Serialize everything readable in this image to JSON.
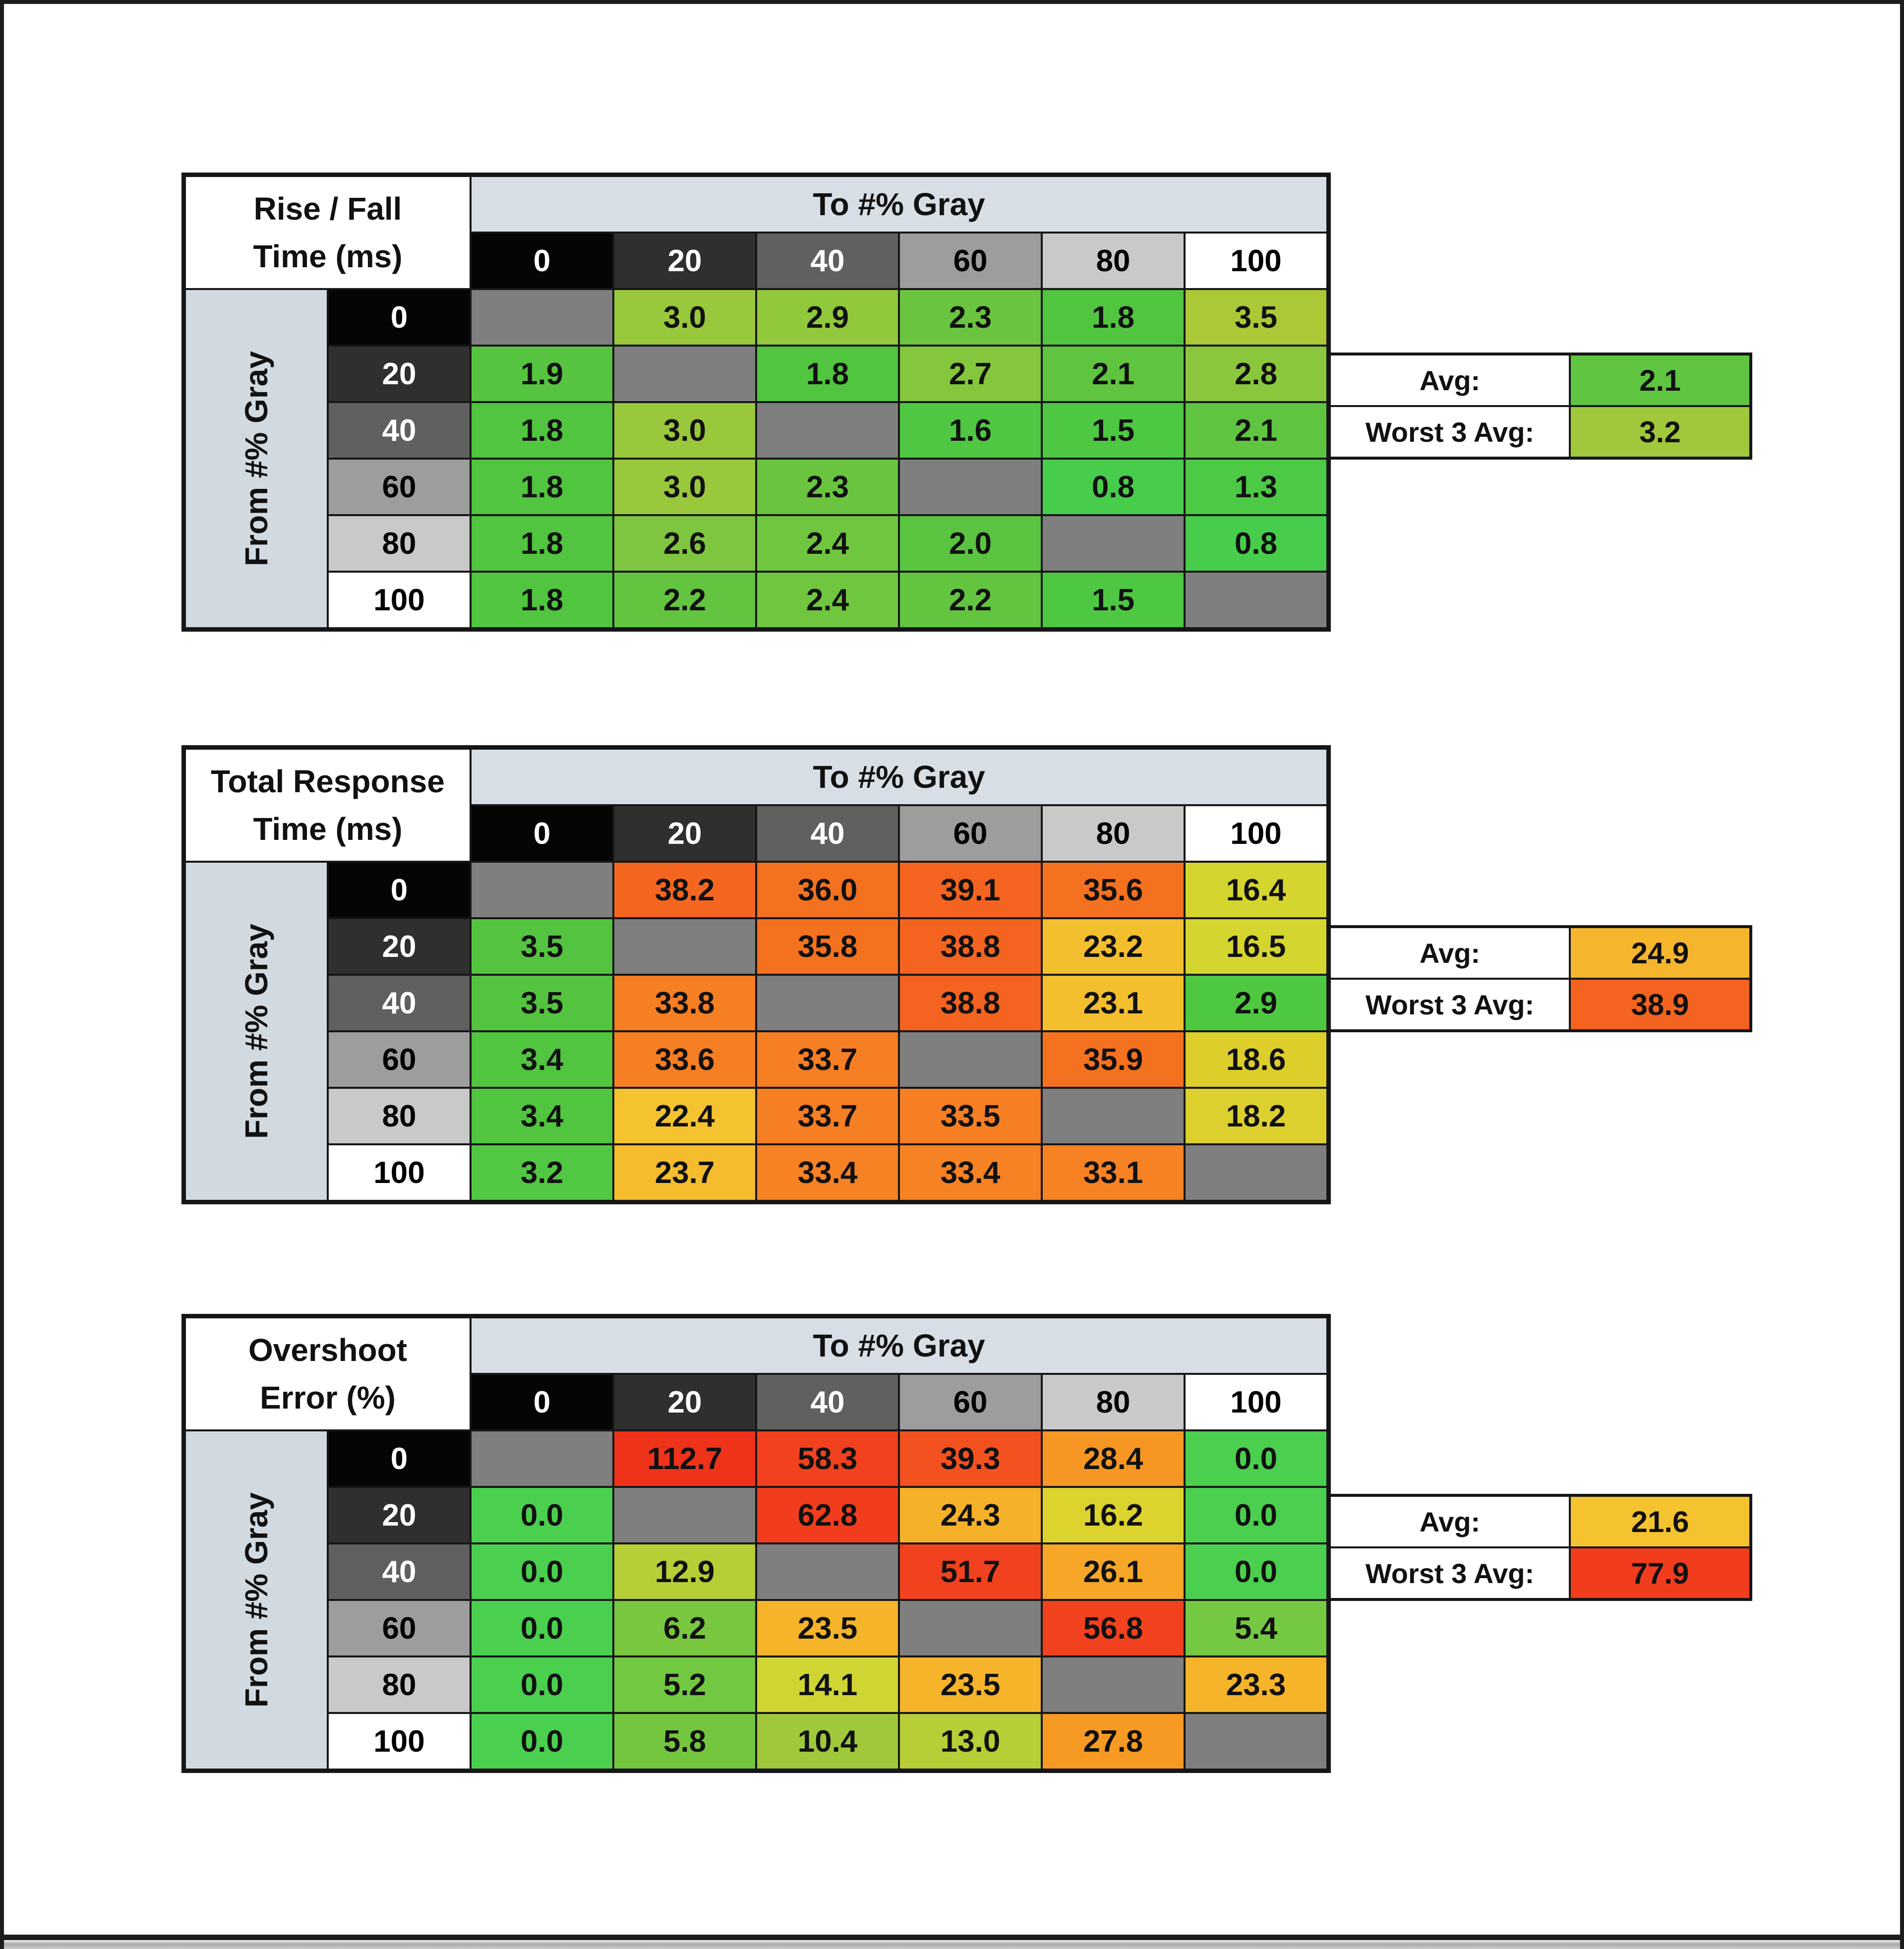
{
  "page": {
    "background": "#ffffff",
    "frame_color": "#1d1d1d"
  },
  "shared": {
    "to_axis_label": "To #% Gray",
    "from_axis_label": "From #% Gray",
    "gray_levels": [
      "0",
      "20",
      "40",
      "60",
      "80",
      "100"
    ],
    "gray_level_bg": [
      "#050505",
      "#2f2f2f",
      "#606060",
      "#9d9d9d",
      "#c9c9c9",
      "#ffffff"
    ],
    "gray_level_text": [
      "#ffffff",
      "#ffffff",
      "#ffffff",
      "#000000",
      "#000000",
      "#000000"
    ],
    "header_band_bg": "#d7dee5",
    "side_strip_bg": "#d2dae1",
    "diagonal_bg": "#7f7f7f",
    "avg_label": "Avg:",
    "worst_label": "Worst 3 Avg:"
  },
  "chart_data": [
    {
      "type": "heatmap",
      "title_line1": "Rise / Fall",
      "title_line2": "Time (ms)",
      "x_axis_label": "To #% Gray",
      "y_axis_label": "From #% Gray",
      "categories_x": [
        "0",
        "20",
        "40",
        "60",
        "80",
        "100"
      ],
      "categories_y": [
        "0",
        "20",
        "40",
        "60",
        "80",
        "100"
      ],
      "values": [
        [
          null,
          3.0,
          2.9,
          2.3,
          1.8,
          3.5
        ],
        [
          1.9,
          null,
          1.8,
          2.7,
          2.1,
          2.8
        ],
        [
          1.8,
          3.0,
          null,
          1.6,
          1.5,
          2.1
        ],
        [
          1.8,
          3.0,
          2.3,
          null,
          0.8,
          1.3
        ],
        [
          1.8,
          2.6,
          2.4,
          2.0,
          null,
          0.8
        ],
        [
          1.8,
          2.2,
          2.4,
          2.2,
          1.5,
          null
        ]
      ],
      "avg": 2.1,
      "worst_3_avg": 3.2,
      "color_stops": [
        [
          0.8,
          122,
          57,
          54
        ],
        [
          1.8,
          112,
          53,
          51
        ],
        [
          2.2,
          104,
          53,
          51
        ],
        [
          2.6,
          92,
          54,
          51
        ],
        [
          3.0,
          80,
          56,
          51
        ],
        [
          3.5,
          72,
          57,
          50
        ]
      ]
    },
    {
      "type": "heatmap",
      "title_line1": "Total Response",
      "title_line2": "Time (ms)",
      "x_axis_label": "To #% Gray",
      "y_axis_label": "From #% Gray",
      "categories_x": [
        "0",
        "20",
        "40",
        "60",
        "80",
        "100"
      ],
      "categories_y": [
        "0",
        "20",
        "40",
        "60",
        "80",
        "100"
      ],
      "values": [
        [
          null,
          38.2,
          36.0,
          39.1,
          35.6,
          16.4
        ],
        [
          3.5,
          null,
          35.8,
          38.8,
          23.2,
          16.5
        ],
        [
          3.5,
          33.8,
          null,
          38.8,
          23.1,
          2.9
        ],
        [
          3.4,
          33.6,
          33.7,
          null,
          35.9,
          18.6
        ],
        [
          3.4,
          22.4,
          33.7,
          33.5,
          null,
          18.2
        ],
        [
          3.2,
          23.7,
          33.4,
          33.4,
          33.1,
          null
        ]
      ],
      "avg": 24.9,
      "worst_3_avg": 38.9,
      "color_stops": [
        [
          2.9,
          114,
          55,
          52
        ],
        [
          3.5,
          111,
          53,
          51
        ],
        [
          16.4,
          60,
          66,
          51
        ],
        [
          18.6,
          55,
          72,
          52
        ],
        [
          22.4,
          45,
          90,
          57
        ],
        [
          24.9,
          41,
          91,
          57
        ],
        [
          33.1,
          27,
          92,
          55
        ],
        [
          35.9,
          23,
          91,
          54
        ],
        [
          39.1,
          19,
          91,
          54
        ]
      ]
    },
    {
      "type": "heatmap",
      "title_line1": "Overshoot",
      "title_line2": "Error (%)",
      "x_axis_label": "To #% Gray",
      "y_axis_label": "From #% Gray",
      "categories_x": [
        "0",
        "20",
        "40",
        "60",
        "80",
        "100"
      ],
      "categories_y": [
        "0",
        "20",
        "40",
        "60",
        "80",
        "100"
      ],
      "values": [
        [
          null,
          112.7,
          58.3,
          39.3,
          28.4,
          0.0
        ],
        [
          0.0,
          null,
          62.8,
          24.3,
          16.2,
          0.0
        ],
        [
          0.0,
          12.9,
          null,
          51.7,
          26.1,
          0.0
        ],
        [
          0.0,
          6.2,
          23.5,
          null,
          56.8,
          5.4
        ],
        [
          0.0,
          5.2,
          14.1,
          23.5,
          null,
          23.3
        ],
        [
          0.0,
          5.8,
          10.4,
          13.0,
          27.8,
          null
        ]
      ],
      "avg": 21.6,
      "worst_3_avg": 77.9,
      "color_stops": [
        [
          0,
          122,
          58,
          55
        ],
        [
          5.2,
          98,
          55,
          52
        ],
        [
          6.2,
          94,
          54,
          51
        ],
        [
          10.4,
          78,
          57,
          51
        ],
        [
          13.0,
          69,
          61,
          51
        ],
        [
          14.1,
          62,
          66,
          52
        ],
        [
          16.2,
          57,
          71,
          52
        ],
        [
          21.6,
          45,
          90,
          57
        ],
        [
          23.5,
          41,
          91,
          56
        ],
        [
          26.1,
          37,
          92,
          56
        ],
        [
          28.4,
          33,
          92,
          55
        ],
        [
          39.3,
          14,
          90,
          54
        ],
        [
          51.7,
          10,
          88,
          53
        ],
        [
          112.7,
          7,
          87,
          52
        ]
      ]
    }
  ]
}
